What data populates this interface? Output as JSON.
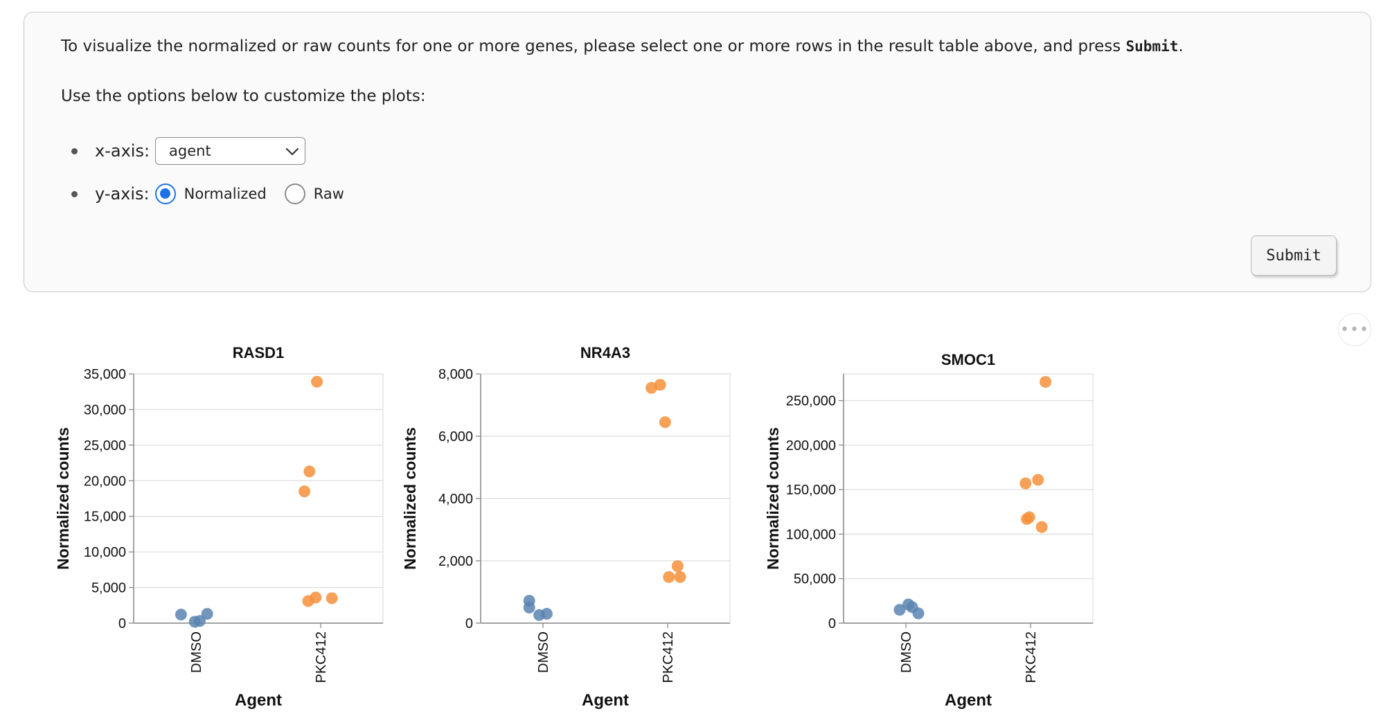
{
  "instructions": {
    "line1_before": "To visualize the normalized or raw counts for one or more genes, please select one or more rows in the result table above, and press ",
    "line1_code": "Submit",
    "line1_after": ".",
    "line2": "Use the options below to customize the plots:"
  },
  "options": {
    "xaxis_label": "x-axis:",
    "xaxis_value": "agent",
    "yaxis_label": "y-axis:",
    "yaxis_options": [
      "Normalized",
      "Raw"
    ],
    "yaxis_selected": "Normalized"
  },
  "submit_label": "Submit",
  "more_label": "•••",
  "colors": {
    "DMSO": "#5b84b1",
    "PKC412": "#f5903a",
    "accent": "#1a73e8"
  },
  "chart_data": [
    {
      "type": "scatter",
      "title": "RASD1",
      "xlabel": "Agent",
      "ylabel": "Normalized counts",
      "categories": [
        "DMSO",
        "PKC412"
      ],
      "ylim": [
        0,
        35000
      ],
      "yticks": [
        0,
        5000,
        10000,
        15000,
        20000,
        25000,
        30000,
        35000
      ],
      "ytick_labels": [
        "0",
        "5,000",
        "10,000",
        "15,000",
        "20,000",
        "25,000",
        "30,000",
        "35,000"
      ],
      "points": [
        {
          "category": "DMSO",
          "jitter": -0.12,
          "value": 1200
        },
        {
          "category": "DMSO",
          "jitter": -0.01,
          "value": 200
        },
        {
          "category": "DMSO",
          "jitter": 0.09,
          "value": 1300
        },
        {
          "category": "DMSO",
          "jitter": 0.03,
          "value": 300
        },
        {
          "category": "PKC412",
          "jitter": -0.03,
          "value": 33900
        },
        {
          "category": "PKC412",
          "jitter": -0.09,
          "value": 21300
        },
        {
          "category": "PKC412",
          "jitter": -0.13,
          "value": 18500
        },
        {
          "category": "PKC412",
          "jitter": -0.04,
          "value": 3600
        },
        {
          "category": "PKC412",
          "jitter": 0.09,
          "value": 3500
        },
        {
          "category": "PKC412",
          "jitter": -0.1,
          "value": 3100
        }
      ]
    },
    {
      "type": "scatter",
      "title": "NR4A3",
      "xlabel": "Agent",
      "ylabel": "Normalized counts",
      "categories": [
        "DMSO",
        "PKC412"
      ],
      "ylim": [
        0,
        8000
      ],
      "yticks": [
        0,
        2000,
        4000,
        6000,
        8000
      ],
      "ytick_labels": [
        "0",
        "2,000",
        "4,000",
        "6,000",
        "8,000"
      ],
      "points": [
        {
          "category": "DMSO",
          "jitter": -0.11,
          "value": 720
        },
        {
          "category": "DMSO",
          "jitter": -0.11,
          "value": 500
        },
        {
          "category": "DMSO",
          "jitter": -0.03,
          "value": 260
        },
        {
          "category": "DMSO",
          "jitter": 0.03,
          "value": 300
        },
        {
          "category": "PKC412",
          "jitter": -0.13,
          "value": 7550
        },
        {
          "category": "PKC412",
          "jitter": -0.06,
          "value": 7650
        },
        {
          "category": "PKC412",
          "jitter": -0.02,
          "value": 6450
        },
        {
          "category": "PKC412",
          "jitter": 0.08,
          "value": 1830
        },
        {
          "category": "PKC412",
          "jitter": 0.01,
          "value": 1480
        },
        {
          "category": "PKC412",
          "jitter": 0.1,
          "value": 1480
        }
      ]
    },
    {
      "type": "scatter",
      "title": "SMOC1",
      "xlabel": "Agent",
      "ylabel": "Normalized counts",
      "categories": [
        "DMSO",
        "PKC412"
      ],
      "ylim": [
        0,
        280000
      ],
      "yticks": [
        0,
        50000,
        100000,
        150000,
        200000,
        250000
      ],
      "ytick_labels": [
        "0",
        "50,000",
        "100,000",
        "150,000",
        "200,000",
        "250,000"
      ],
      "points": [
        {
          "category": "DMSO",
          "jitter": -0.05,
          "value": 15000
        },
        {
          "category": "DMSO",
          "jitter": 0.02,
          "value": 21000
        },
        {
          "category": "DMSO",
          "jitter": 0.05,
          "value": 18000
        },
        {
          "category": "DMSO",
          "jitter": 0.1,
          "value": 11000
        },
        {
          "category": "PKC412",
          "jitter": 0.12,
          "value": 271000
        },
        {
          "category": "PKC412",
          "jitter": 0.06,
          "value": 161000
        },
        {
          "category": "PKC412",
          "jitter": -0.04,
          "value": 157000
        },
        {
          "category": "PKC412",
          "jitter": -0.01,
          "value": 119000
        },
        {
          "category": "PKC412",
          "jitter": -0.03,
          "value": 117000
        },
        {
          "category": "PKC412",
          "jitter": 0.09,
          "value": 108000
        }
      ]
    }
  ]
}
